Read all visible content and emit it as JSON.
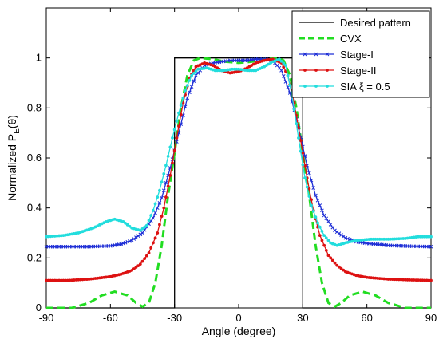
{
  "chart_data": {
    "type": "line",
    "title": "",
    "xlabel": "Angle (degree)",
    "ylabel": "Normalized  P_E(θ)",
    "ylabel_parts": {
      "main": "Normalized  P",
      "sub": "E",
      "tail": "(θ)"
    },
    "xlim": [
      -90,
      90
    ],
    "ylim": [
      0,
      1.2
    ],
    "x_ticks": [
      -90,
      -60,
      -30,
      0,
      30,
      60,
      90
    ],
    "y_ticks": [
      0,
      0.2,
      0.4,
      0.6,
      0.8,
      1
    ],
    "grid": false,
    "legend_position": "top-right",
    "series": [
      {
        "name": "Desired pattern",
        "color": "#000000",
        "style": "solid",
        "marker": "none",
        "points": [
          [
            -90,
            0
          ],
          [
            -30,
            0
          ],
          [
            -30,
            1
          ],
          [
            30,
            1
          ],
          [
            30,
            0
          ],
          [
            90,
            0
          ]
        ]
      },
      {
        "name": "CVX",
        "color": "#22dd22",
        "style": "dashed",
        "marker": "none",
        "points": [
          [
            -90,
            0.0
          ],
          [
            -85,
            0.0
          ],
          [
            -78,
            0.0
          ],
          [
            -70,
            0.02
          ],
          [
            -64,
            0.05
          ],
          [
            -58,
            0.065
          ],
          [
            -52,
            0.05
          ],
          [
            -48,
            0.02
          ],
          [
            -45,
            0.005
          ],
          [
            -42,
            0.02
          ],
          [
            -39,
            0.1
          ],
          [
            -36,
            0.25
          ],
          [
            -33,
            0.45
          ],
          [
            -30,
            0.62
          ],
          [
            -27,
            0.8
          ],
          [
            -24,
            0.93
          ],
          [
            -21,
            0.99
          ],
          [
            -18,
            1.0
          ],
          [
            -12,
            0.995
          ],
          [
            -6,
            0.985
          ],
          [
            0,
            0.98
          ],
          [
            6,
            0.985
          ],
          [
            12,
            0.995
          ],
          [
            18,
            1.0
          ],
          [
            21,
            0.99
          ],
          [
            24,
            0.93
          ],
          [
            27,
            0.8
          ],
          [
            30,
            0.62
          ],
          [
            33,
            0.45
          ],
          [
            36,
            0.25
          ],
          [
            39,
            0.1
          ],
          [
            42,
            0.02
          ],
          [
            45,
            0.005
          ],
          [
            48,
            0.02
          ],
          [
            52,
            0.05
          ],
          [
            58,
            0.065
          ],
          [
            64,
            0.05
          ],
          [
            70,
            0.02
          ],
          [
            78,
            0.0
          ],
          [
            85,
            0.0
          ],
          [
            90,
            0.0
          ]
        ]
      },
      {
        "name": "Stage-I",
        "color": "#1f2fd6",
        "style": "solid",
        "marker": "x",
        "points": [
          [
            -90,
            0.245
          ],
          [
            -80,
            0.245
          ],
          [
            -70,
            0.245
          ],
          [
            -60,
            0.248
          ],
          [
            -55,
            0.255
          ],
          [
            -50,
            0.27
          ],
          [
            -45,
            0.3
          ],
          [
            -40,
            0.36
          ],
          [
            -36,
            0.44
          ],
          [
            -32,
            0.56
          ],
          [
            -28,
            0.7
          ],
          [
            -24,
            0.84
          ],
          [
            -20,
            0.93
          ],
          [
            -16,
            0.97
          ],
          [
            -12,
            0.98
          ],
          [
            -8,
            0.985
          ],
          [
            -4,
            0.99
          ],
          [
            0,
            0.99
          ],
          [
            4,
            0.99
          ],
          [
            8,
            0.995
          ],
          [
            12,
            0.995
          ],
          [
            16,
            0.99
          ],
          [
            20,
            0.95
          ],
          [
            24,
            0.86
          ],
          [
            28,
            0.72
          ],
          [
            32,
            0.57
          ],
          [
            36,
            0.45
          ],
          [
            40,
            0.37
          ],
          [
            45,
            0.31
          ],
          [
            50,
            0.28
          ],
          [
            55,
            0.265
          ],
          [
            60,
            0.258
          ],
          [
            70,
            0.25
          ],
          [
            80,
            0.247
          ],
          [
            90,
            0.245
          ]
        ]
      },
      {
        "name": "Stage-II",
        "color": "#dd1111",
        "style": "solid",
        "marker": "dot",
        "points": [
          [
            -90,
            0.11
          ],
          [
            -80,
            0.11
          ],
          [
            -70,
            0.115
          ],
          [
            -60,
            0.125
          ],
          [
            -55,
            0.135
          ],
          [
            -50,
            0.15
          ],
          [
            -46,
            0.175
          ],
          [
            -42,
            0.22
          ],
          [
            -38,
            0.3
          ],
          [
            -35,
            0.4
          ],
          [
            -32,
            0.53
          ],
          [
            -29,
            0.68
          ],
          [
            -26,
            0.82
          ],
          [
            -23,
            0.92
          ],
          [
            -20,
            0.965
          ],
          [
            -16,
            0.98
          ],
          [
            -12,
            0.97
          ],
          [
            -8,
            0.95
          ],
          [
            -4,
            0.94
          ],
          [
            0,
            0.945
          ],
          [
            4,
            0.96
          ],
          [
            8,
            0.98
          ],
          [
            12,
            0.99
          ],
          [
            16,
            0.995
          ],
          [
            20,
            0.98
          ],
          [
            23,
            0.93
          ],
          [
            26,
            0.82
          ],
          [
            29,
            0.67
          ],
          [
            32,
            0.52
          ],
          [
            35,
            0.39
          ],
          [
            38,
            0.29
          ],
          [
            42,
            0.21
          ],
          [
            46,
            0.17
          ],
          [
            50,
            0.145
          ],
          [
            55,
            0.13
          ],
          [
            60,
            0.122
          ],
          [
            70,
            0.115
          ],
          [
            80,
            0.112
          ],
          [
            90,
            0.11
          ]
        ]
      },
      {
        "name": "SIA ξ  = 0.5",
        "color": "#22dddd",
        "style": "solid",
        "marker": "dot",
        "points": [
          [
            -90,
            0.285
          ],
          [
            -82,
            0.29
          ],
          [
            -75,
            0.3
          ],
          [
            -68,
            0.32
          ],
          [
            -62,
            0.345
          ],
          [
            -58,
            0.355
          ],
          [
            -54,
            0.345
          ],
          [
            -50,
            0.32
          ],
          [
            -46,
            0.31
          ],
          [
            -43,
            0.33
          ],
          [
            -40,
            0.39
          ],
          [
            -37,
            0.47
          ],
          [
            -34,
            0.57
          ],
          [
            -31,
            0.68
          ],
          [
            -28,
            0.78
          ],
          [
            -25,
            0.87
          ],
          [
            -22,
            0.93
          ],
          [
            -19,
            0.955
          ],
          [
            -15,
            0.96
          ],
          [
            -11,
            0.95
          ],
          [
            -7,
            0.95
          ],
          [
            -3,
            0.955
          ],
          [
            0,
            0.955
          ],
          [
            4,
            0.95
          ],
          [
            8,
            0.95
          ],
          [
            12,
            0.965
          ],
          [
            16,
            0.985
          ],
          [
            19,
            0.995
          ],
          [
            22,
            0.97
          ],
          [
            25,
            0.85
          ],
          [
            28,
            0.68
          ],
          [
            31,
            0.52
          ],
          [
            34,
            0.41
          ],
          [
            37,
            0.34
          ],
          [
            40,
            0.29
          ],
          [
            43,
            0.26
          ],
          [
            46,
            0.25
          ],
          [
            50,
            0.26
          ],
          [
            55,
            0.27
          ],
          [
            62,
            0.275
          ],
          [
            70,
            0.275
          ],
          [
            78,
            0.278
          ],
          [
            84,
            0.285
          ],
          [
            90,
            0.285
          ]
        ]
      }
    ]
  }
}
